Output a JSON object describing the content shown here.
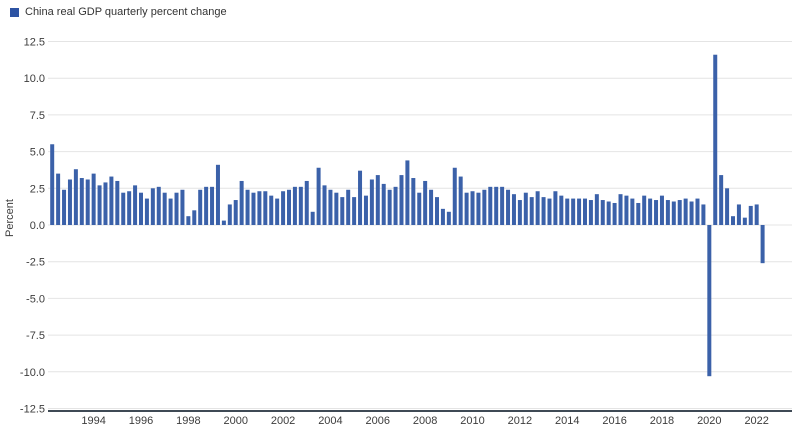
{
  "legend": {
    "label": "China real GDP quarterly percent change",
    "swatch_color": "#2d53a3"
  },
  "chart_data": {
    "type": "bar",
    "title": "China real GDP quarterly percent change",
    "xlabel": "",
    "ylabel": "Percent",
    "ylim": [
      -12.5,
      12.5
    ],
    "ytick_step": 2.5,
    "yticks": [
      12.5,
      10.0,
      7.5,
      5.0,
      2.5,
      0.0,
      -2.5,
      -5.0,
      -7.5,
      -10.0,
      -12.5
    ],
    "xticks": [
      "1994",
      "1996",
      "1998",
      "2000",
      "2002",
      "2004",
      "2006",
      "2008",
      "2010",
      "2012",
      "2014",
      "2016",
      "2018",
      "2020",
      "2022"
    ],
    "grid": true,
    "legend_position": "top-left",
    "bar_color": "#3b61a9",
    "gridline_color": "#e4e4e4",
    "axis_line_color": "#3f4a55",
    "x_start": {
      "year": 1992,
      "quarter": 2
    },
    "x_end": {
      "year": 2022,
      "quarter": 2
    },
    "frequency": "quarterly",
    "series": [
      {
        "name": "China real GDP quarterly percent change",
        "values": [
          5.5,
          3.5,
          2.4,
          3.1,
          3.8,
          3.2,
          3.1,
          3.5,
          2.7,
          2.9,
          3.3,
          3.0,
          2.2,
          2.3,
          2.7,
          2.2,
          1.8,
          2.5,
          2.6,
          2.2,
          1.8,
          2.2,
          2.4,
          0.6,
          1.0,
          2.4,
          2.6,
          2.6,
          4.1,
          0.3,
          1.4,
          1.7,
          3.0,
          2.4,
          2.2,
          2.3,
          2.3,
          2.0,
          1.8,
          2.3,
          2.4,
          2.6,
          2.6,
          3.0,
          0.9,
          3.9,
          2.7,
          2.4,
          2.2,
          1.9,
          2.4,
          1.9,
          3.7,
          2.0,
          3.1,
          3.4,
          2.8,
          2.4,
          2.6,
          3.4,
          4.4,
          3.2,
          2.2,
          3.0,
          2.4,
          1.9,
          1.1,
          0.9,
          3.9,
          3.3,
          2.2,
          2.3,
          2.2,
          2.4,
          2.6,
          2.6,
          2.6,
          2.4,
          2.1,
          1.7,
          2.2,
          1.9,
          2.3,
          1.9,
          1.8,
          2.3,
          2.0,
          1.8,
          1.8,
          1.8,
          1.8,
          1.7,
          2.1,
          1.7,
          1.6,
          1.5,
          2.1,
          2.0,
          1.8,
          1.5,
          2.0,
          1.8,
          1.7,
          2.0,
          1.7,
          1.6,
          1.7,
          1.8,
          1.6,
          1.8,
          1.4,
          -10.3,
          11.6,
          3.4,
          2.5,
          0.6,
          1.4,
          0.5,
          1.3,
          1.4,
          -2.6
        ]
      }
    ]
  }
}
